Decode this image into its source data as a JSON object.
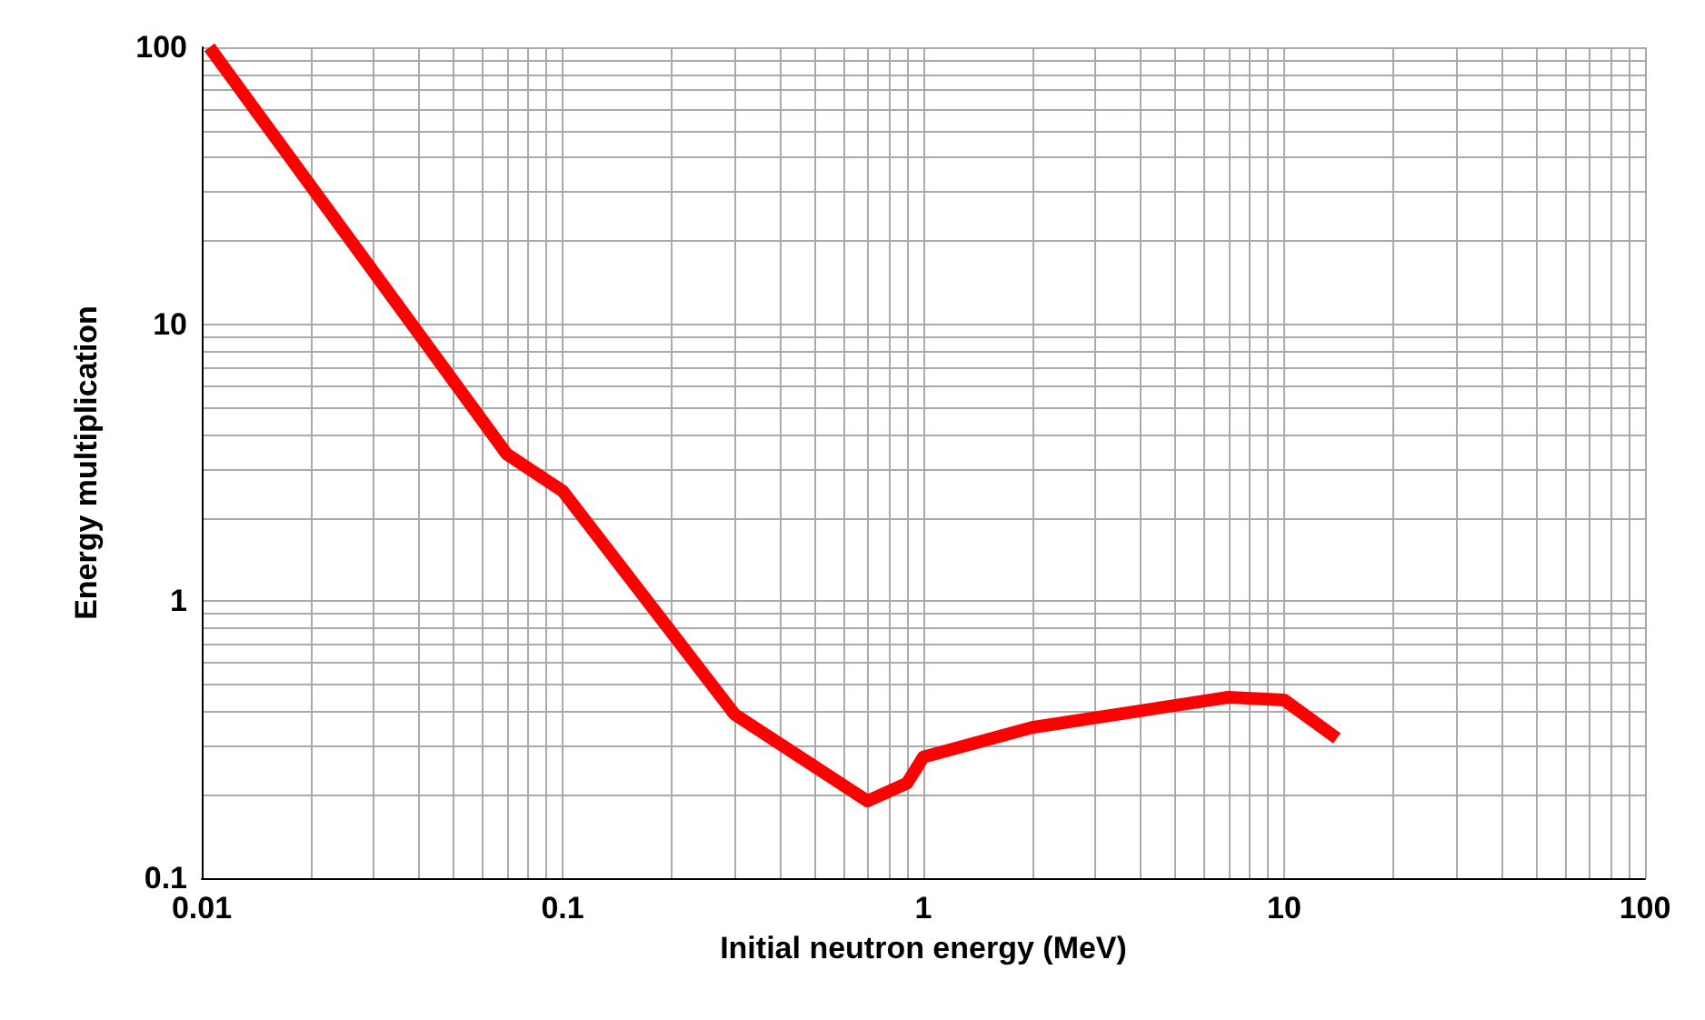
{
  "chart_data": {
    "type": "line",
    "xlabel": "Initial neutron energy (MeV)",
    "ylabel": "Energy multiplication",
    "log": "xy",
    "grid": true,
    "xlim": [
      0.01,
      100
    ],
    "xticks": [
      0.01,
      0.1,
      1,
      10,
      100
    ],
    "ylim": [
      0.1,
      100
    ],
    "yticks": [
      0.1,
      1,
      10,
      100
    ],
    "x": [
      0.0105,
      0.07,
      0.1,
      0.3,
      0.7,
      0.9,
      1,
      2,
      7,
      10,
      14
    ],
    "series": [
      {
        "color": "#ff0000",
        "values": [
          100,
          3.4,
          2.5,
          0.39,
          0.19,
          0.22,
          0.274,
          0.35,
          0.45,
          0.44,
          0.32
        ]
      }
    ]
  }
}
